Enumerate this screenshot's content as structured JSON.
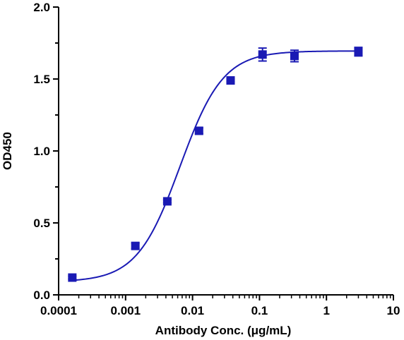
{
  "chart_data": {
    "type": "scatter",
    "title": "",
    "xlabel": "Antibody Conc. (μg/mL)",
    "ylabel": "OD450",
    "xscale": "log",
    "xlim": [
      0.0001,
      10
    ],
    "ylim": [
      0.0,
      2.0
    ],
    "x_ticks": [
      "0.0001",
      "0.001",
      "0.01",
      "0.1",
      "1",
      "10"
    ],
    "x_tick_values": [
      0.0001,
      0.001,
      0.01,
      0.1,
      1,
      10
    ],
    "y_ticks": [
      "0.0",
      "0.5",
      "1.0",
      "1.5",
      "2.0"
    ],
    "y_tick_values": [
      0.0,
      0.5,
      1.0,
      1.5,
      2.0
    ],
    "grid": false,
    "legend": "none",
    "color": "#1a1ab4",
    "series": [
      {
        "marker": "square",
        "points": [
          {
            "x": 0.00016,
            "y": 0.12,
            "err": 0.01
          },
          {
            "x": 0.0014,
            "y": 0.34,
            "err": 0.02
          },
          {
            "x": 0.0042,
            "y": 0.65,
            "err": 0.01
          },
          {
            "x": 0.0125,
            "y": 1.14,
            "err": 0.02
          },
          {
            "x": 0.037,
            "y": 1.49,
            "err": 0.01
          },
          {
            "x": 0.111,
            "y": 1.67,
            "err": 0.045
          },
          {
            "x": 0.333,
            "y": 1.66,
            "err": 0.04
          },
          {
            "x": 3.0,
            "y": 1.69,
            "err": 0.03
          }
        ]
      }
    ],
    "fit": {
      "model": "4PL",
      "bottom": 0.09,
      "top": 1.695,
      "ec50": 0.0065,
      "hill": 1.35
    }
  }
}
